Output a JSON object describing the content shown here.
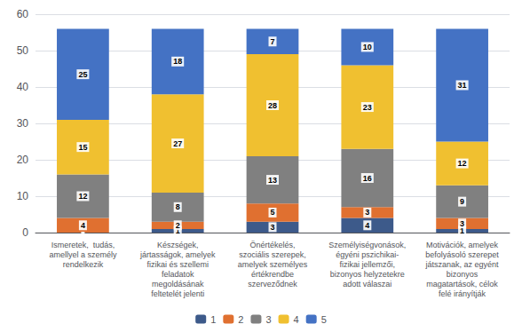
{
  "chart_data": {
    "type": "bar",
    "stacked": true,
    "categories": [
      "Ismeretek,  tudás,\namellyel a személy\nrendelkezik",
      "Készségek,\njártasságok, amelyek\nfizikai és szellemi\nfeladatok\nmegoldásának\nfeltetelét jelenti",
      "Önértékelés,\nszociális szerepek,\namelyek személyes\nértékrendbe\nszerveződnek",
      "Személyiségvonások,\négyéni pszichikai-\nfizikai jellemzői,\nbizonyos helyzetekre\nadott válaszai",
      "Motivációk, amelyek\nbefolyásoló szerepet\njátszanak, az egyént\nbizonyos\nmagatartások, célok\nfelé irányítják"
    ],
    "series": [
      {
        "name": "1",
        "color": "#3d5a8a",
        "values": [
          0,
          1,
          3,
          4,
          1
        ]
      },
      {
        "name": "2",
        "color": "#e07030",
        "values": [
          4,
          2,
          5,
          3,
          3
        ]
      },
      {
        "name": "3",
        "color": "#808080",
        "values": [
          12,
          8,
          13,
          16,
          9
        ]
      },
      {
        "name": "4",
        "color": "#f0c030",
        "values": [
          15,
          27,
          28,
          23,
          12
        ]
      },
      {
        "name": "5",
        "color": "#4472c4",
        "values": [
          25,
          18,
          7,
          10,
          31
        ]
      }
    ],
    "ylim": [
      0,
      60
    ],
    "yticks": [
      0,
      10,
      20,
      30,
      40,
      50,
      60
    ],
    "grid": true,
    "legend": "bottom",
    "data_labels": true
  }
}
